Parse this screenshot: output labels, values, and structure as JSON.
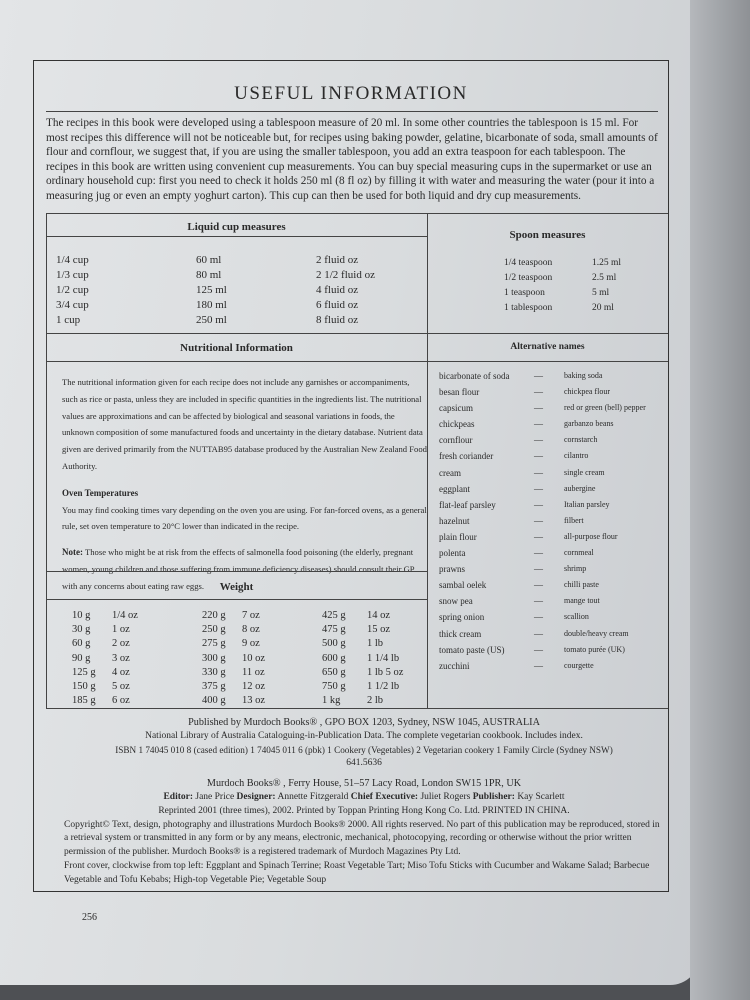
{
  "title": "USEFUL INFORMATION",
  "intro": "The recipes in this book were developed using a tablespoon measure of 20 ml. In some other countries the tablespoon is 15 ml. For most recipes this difference will not be noticeable but, for recipes using baking powder, gelatine, bicarbonate of soda, small amounts of flour and cornflour, we suggest that, if you are using the smaller tablespoon, you add an extra teaspoon for each tablespoon. The recipes in this book are written using convenient cup measurements. You can buy special measuring cups in the supermarket or use an ordinary household cup: first you need to check it holds 250 ml (8 fl oz) by filling it with water and measuring the water (pour it into a measuring jug or even an empty yoghurt carton). This cup can then be used for both liquid and dry cup measurements.",
  "liquid": {
    "heading": "Liquid cup measures",
    "rows": [
      [
        "1/4 cup",
        "60 ml",
        "2 fluid oz"
      ],
      [
        "1/3 cup",
        "80 ml",
        "2 1/2 fluid oz"
      ],
      [
        "1/2 cup",
        "125 ml",
        "4 fluid oz"
      ],
      [
        "3/4 cup",
        "180 ml",
        "6 fluid oz"
      ],
      [
        "1 cup",
        "250 ml",
        "8 fluid oz"
      ]
    ]
  },
  "spoon": {
    "heading": "Spoon measures",
    "rows": [
      [
        "1/4 teaspoon",
        "1.25 ml"
      ],
      [
        "1/2 teaspoon",
        "2.5 ml"
      ],
      [
        "1 teaspoon",
        "5 ml"
      ],
      [
        "1 tablespoon",
        "20 ml"
      ]
    ]
  },
  "nutrition": {
    "heading": "Nutritional Information",
    "text": "The nutritional information given for each recipe does not include any garnishes or accompaniments, such as rice or pasta, unless they are included in specific quantities in the ingredients list. The nutritional values are approximations and can be affected by biological and seasonal variations in foods, the unknown composition of some manufactured foods and uncertainty in the dietary database. Nutrient data given are derived primarily from the NUTTAB95 database produced by the Australian New Zealand Food Authority.",
    "oven_heading": "Oven Temperatures",
    "oven_text": "You may find cooking times vary depending on the oven you are using. For fan-forced ovens, as a general rule, set oven temperature to 20°C lower than indicated in the recipe.",
    "note_label": "Note:",
    "note_text": "Those who might be at risk from the effects of salmonella food poisoning (the elderly, pregnant women, young children and those suffering from immune deficiency diseases) should consult their GP with any concerns about eating raw eggs."
  },
  "alternative": {
    "heading": "Alternative names",
    "dash": "—",
    "rows": [
      [
        "bicarbonate of soda",
        "baking soda"
      ],
      [
        "besan flour",
        "chickpea flour"
      ],
      [
        "capsicum",
        "red or green (bell) pepper"
      ],
      [
        "chickpeas",
        "garbanzo beans"
      ],
      [
        "cornflour",
        "cornstarch"
      ],
      [
        "fresh coriander",
        "cilantro"
      ],
      [
        "cream",
        "single cream"
      ],
      [
        "eggplant",
        "aubergine"
      ],
      [
        "flat-leaf parsley",
        "Italian parsley"
      ],
      [
        "hazelnut",
        "filbert"
      ],
      [
        "plain flour",
        "all-purpose flour"
      ],
      [
        "polenta",
        "cornmeal"
      ],
      [
        "prawns",
        "shrimp"
      ],
      [
        "sambal oelek",
        "chilli paste"
      ],
      [
        "snow pea",
        "mange tout"
      ],
      [
        "spring onion",
        "scallion"
      ],
      [
        "thick cream",
        "double/heavy cream"
      ],
      [
        "tomato paste (US)",
        "tomato purée (UK)"
      ],
      [
        "zucchini",
        "courgette"
      ]
    ]
  },
  "weight": {
    "heading": "Weight",
    "rows": [
      [
        "10 g",
        "1/4 oz",
        "220 g",
        "7 oz",
        "425 g",
        "14 oz"
      ],
      [
        "30 g",
        "1 oz",
        "250 g",
        "8 oz",
        "475 g",
        "15 oz"
      ],
      [
        "60 g",
        "2 oz",
        "275 g",
        "9 oz",
        "500 g",
        "1 lb"
      ],
      [
        "90 g",
        "3 oz",
        "300 g",
        "10 oz",
        "600 g",
        "1 1/4 lb"
      ],
      [
        "125 g",
        "4 oz",
        "330 g",
        "11 oz",
        "650 g",
        "1 lb 5 oz"
      ],
      [
        "150 g",
        "5 oz",
        "375 g",
        "12 oz",
        "750 g",
        "1 1/2 lb"
      ],
      [
        "185 g",
        "6 oz",
        "400 g",
        "13 oz",
        "1 kg",
        "2 lb"
      ]
    ]
  },
  "publication": {
    "line1": "Published by Murdoch Books® , GPO BOX 1203, Sydney, NSW 1045, AUSTRALIA",
    "line2": "National Library of Australia Cataloguing-in-Publication Data. The complete vegetarian cookbook. Includes index.",
    "line3": "ISBN 1 74045 010 8 (cased edition) 1 74045 011 6 (pbk) 1 Cookery (Vegetables) 2 Vegetarian cookery 1 Family Circle (Sydney NSW)",
    "line4": "641.5636",
    "line5": "Murdoch Books® , Ferry House, 51–57 Lacy Road, London SW15 1PR, UK",
    "editor_label": "Editor:",
    "editor": "Jane Price",
    "designer_label": "Designer:",
    "designer": "Annette Fitzgerald",
    "ceo_label": "Chief Executive:",
    "ceo": "Juliet Rogers",
    "publisher_label": "Publisher:",
    "publisher": "Kay Scarlett",
    "line7": "Reprinted 2001 (three times), 2002. Printed by Toppan Printing Hong Kong Co. Ltd. PRINTED IN CHINA.",
    "line8": "Copyright© Text, design, photography and illustrations Murdoch Books® 2000. All rights reserved. No part of this publication may be reproduced, stored in a retrieval system or transmitted in any form or by any means, electronic, mechanical, photocopying, recording or otherwise without the prior written permission of the publisher. Murdoch Books® is a registered trademark of Murdoch Magazines Pty Ltd.",
    "line9": "Front cover, clockwise from top left: Eggplant and Spinach Terrine; Roast Vegetable Tart; Miso Tofu Sticks with Cucumber and Wakame Salad; Barbecue Vegetable and Tofu Kebabs; High-top Vegetable Pie; Vegetable Soup"
  },
  "page_number": "256"
}
